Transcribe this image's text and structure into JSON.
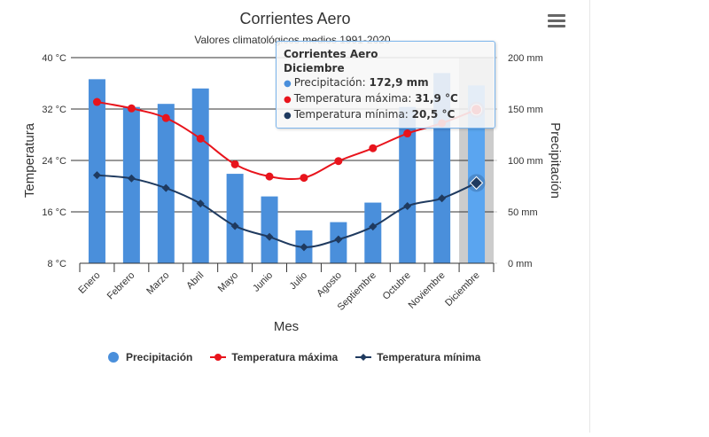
{
  "chart_data": {
    "type": "bar",
    "title": "Corrientes Aero",
    "subtitle": "Valores climatológicos medios 1991-2020",
    "xlabel": "Mes",
    "ylabel_left": "Temperatura",
    "ylabel_right": "Precipitación",
    "categories": [
      "Enero",
      "Febrero",
      "Marzo",
      "Abril",
      "Mayo",
      "Junio",
      "Julio",
      "Agosto",
      "Septiembre",
      "Octubre",
      "Noviembre",
      "Diciembre"
    ],
    "y_left": {
      "range": [
        8,
        40
      ],
      "ticks": [
        "8 °C",
        "16 °C",
        "24 °C",
        "32 °C",
        "40 °C"
      ],
      "tick_values": [
        8,
        16,
        24,
        32,
        40
      ]
    },
    "y_right": {
      "range": [
        0,
        200
      ],
      "ticks": [
        "0 mm",
        "50 mm",
        "100 mm",
        "150 mm",
        "200 mm"
      ],
      "tick_values": [
        0,
        50,
        100,
        150,
        200
      ]
    },
    "grid": true,
    "legend_position": "bottom",
    "series": [
      {
        "name": "Precipitación",
        "type": "bar",
        "axis": "right",
        "color": "#4a8fdb",
        "values": [
          179,
          152,
          155,
          170,
          87,
          65,
          32,
          40,
          59,
          152,
          185,
          172.9
        ]
      },
      {
        "name": "Temperatura máxima",
        "type": "line",
        "axis": "left",
        "color": "#e8141c",
        "marker": "circle",
        "values": [
          33.1,
          32.1,
          30.6,
          27.4,
          23.4,
          21.5,
          21.3,
          23.9,
          25.9,
          28.2,
          29.8,
          31.9
        ]
      },
      {
        "name": "Temperatura mínima",
        "type": "line",
        "axis": "left",
        "color": "#1f3a5f",
        "marker": "diamond",
        "values": [
          21.7,
          21.2,
          19.7,
          17.3,
          13.8,
          12.1,
          10.5,
          11.7,
          13.7,
          16.9,
          18.1,
          20.5
        ]
      }
    ],
    "highlighted_category": "Diciembre"
  },
  "tooltip": {
    "title": "Corrientes Aero",
    "category": "Diciembre",
    "rows": [
      {
        "label": "Precipitación: ",
        "value": "172,9 mm",
        "color": "#4a8fdb"
      },
      {
        "label": "Temperatura máxima: ",
        "value": "31,9 °C",
        "color": "#e8141c"
      },
      {
        "label": "Temperatura mínima: ",
        "value": "20,5 °C",
        "color": "#1f3a5f"
      }
    ]
  },
  "menu": {
    "icon": "hamburger-menu-icon"
  },
  "colors": {
    "highlight_band": "#cccccc",
    "grid": "#333333",
    "bar_highlight": "#5aa5f0"
  }
}
